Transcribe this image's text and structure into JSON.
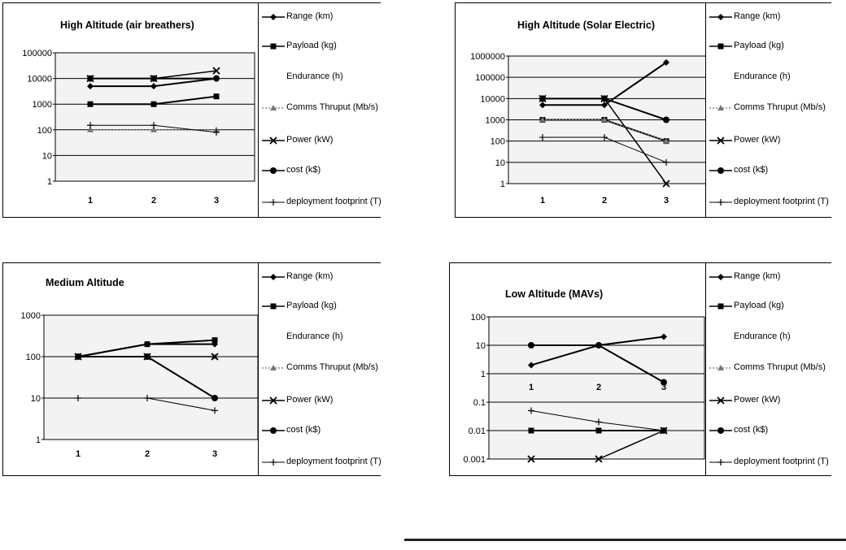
{
  "legend_items": [
    {
      "label": "Range (km)",
      "marker": "diamond",
      "line": true
    },
    {
      "label": "Payload (kg)",
      "marker": "square",
      "line": true
    },
    {
      "label": "Endurance (h)",
      "marker": "none",
      "line": false
    },
    {
      "label": "Comms Thruput (Mb/s)",
      "marker": "tri",
      "line": true
    },
    {
      "label": "Power (kW)",
      "marker": "x",
      "line": true
    },
    {
      "label": "cost (k$)",
      "marker": "circle",
      "line": true
    },
    {
      "label": "deployment footprint (T)",
      "marker": "plus",
      "line": true
    }
  ],
  "charts": [
    {
      "title": "High Altitude (air breathers)"
    },
    {
      "title": "High Altitude (Solar Electric)"
    },
    {
      "title": "Medium Altitude"
    },
    {
      "title": "Low Altitude (MAVs)"
    }
  ],
  "chart_data": [
    {
      "type": "line",
      "scale": "log",
      "title": "High Altitude (air breathers)",
      "x": [
        1,
        2,
        3
      ],
      "y_ticks": [
        "1",
        "10",
        "100",
        "1000",
        "10000",
        "100000"
      ],
      "ylim": [
        1,
        100000
      ],
      "grid": true,
      "legend": "right",
      "series": [
        {
          "name": "Range (km)",
          "values": [
            5000,
            5000,
            10000
          ]
        },
        {
          "name": "Payload (kg)",
          "values": [
            1000,
            1000,
            2000
          ]
        },
        {
          "name": "Comms Thruput (Mb/s)",
          "values": [
            100,
            100,
            100
          ]
        },
        {
          "name": "Power (kW)",
          "values": [
            10000,
            10000,
            20000
          ]
        },
        {
          "name": "cost (k$)",
          "values": [
            10000,
            10000,
            10000
          ]
        },
        {
          "name": "deployment footprint (T)",
          "values": [
            150,
            150,
            80
          ]
        }
      ]
    },
    {
      "type": "line",
      "scale": "log",
      "title": "High Altitude (Solar Electric)",
      "x": [
        1,
        2,
        3
      ],
      "y_ticks": [
        "1",
        "10",
        "100",
        "1000",
        "10000",
        "100000",
        "1000000"
      ],
      "ylim": [
        1,
        1000000
      ],
      "grid": true,
      "legend": "right",
      "series": [
        {
          "name": "Range (km)",
          "values": [
            5000,
            5000,
            500000
          ]
        },
        {
          "name": "Payload (kg)",
          "values": [
            1000,
            1000,
            100
          ]
        },
        {
          "name": "Comms Thruput (Mb/s)",
          "values": [
            1000,
            1000,
            100
          ]
        },
        {
          "name": "Power (kW)",
          "values": [
            10000,
            10000,
            1
          ]
        },
        {
          "name": "cost (k$)",
          "values": [
            10000,
            10000,
            1000
          ]
        },
        {
          "name": "deployment footprint (T)",
          "values": [
            150,
            150,
            10
          ]
        }
      ]
    },
    {
      "type": "line",
      "scale": "log",
      "title": "Medium Altitude",
      "x": [
        1,
        2,
        3
      ],
      "y_ticks": [
        "1",
        "10",
        "100",
        "1000"
      ],
      "ylim": [
        1,
        1000
      ],
      "grid": true,
      "legend": "right",
      "series": [
        {
          "name": "Range (km)",
          "values": [
            100,
            200,
            200
          ]
        },
        {
          "name": "Payload (kg)",
          "values": [
            100,
            200,
            250
          ]
        },
        {
          "name": "Comms Thruput (Mb/s)",
          "values": [
            100,
            100,
            100
          ]
        },
        {
          "name": "Power (kW)",
          "values": [
            100,
            100,
            100
          ]
        },
        {
          "name": "cost (k$)",
          "values": [
            100,
            100,
            10
          ]
        },
        {
          "name": "deployment footprint (T)",
          "values": [
            10,
            10,
            5
          ]
        }
      ]
    },
    {
      "type": "line",
      "scale": "log",
      "title": "Low Altitude (MAVs)",
      "x": [
        1,
        2,
        3
      ],
      "y_ticks": [
        "0.001",
        "0.01",
        "0.1",
        "1",
        "10",
        "100"
      ],
      "ylim": [
        0.001,
        100
      ],
      "grid": true,
      "legend": "right",
      "series": [
        {
          "name": "Range (km)",
          "values": [
            2,
            10,
            20
          ]
        },
        {
          "name": "Payload (kg)",
          "values": [
            0.01,
            0.01,
            0.01
          ]
        },
        {
          "name": "Power (kW)",
          "values": [
            0.001,
            0.001,
            0.01
          ]
        },
        {
          "name": "cost (k$)",
          "values": [
            10,
            10,
            0.5
          ]
        },
        {
          "name": "deployment footprint (T)",
          "values": [
            0.05,
            0.02,
            0.01
          ]
        }
      ]
    }
  ]
}
